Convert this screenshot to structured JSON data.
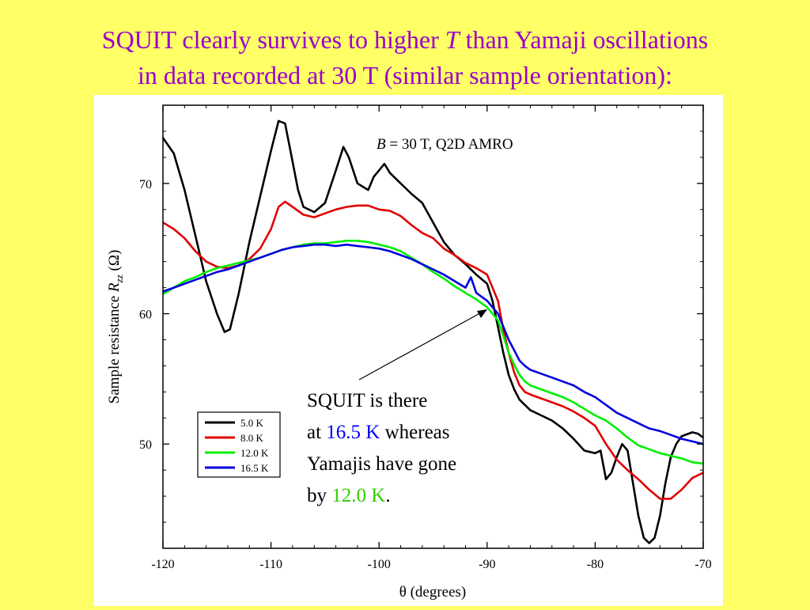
{
  "slide": {
    "title_part1": "SQUIT clearly survives to higher ",
    "title_T": "T",
    "title_part2": " than Yamaji oscillations",
    "title_line2": "in data recorded at 30 T (similar sample orientation):"
  },
  "callout": {
    "line1": "SQUIT is there",
    "at": "at ",
    "temp_blue": "16.5 K",
    "whereas": " whereas",
    "line3": "Yamajis have gone",
    "by": "by ",
    "temp_green": "12.0 K",
    "period": "."
  },
  "colors": {
    "title": "#9900cc",
    "background": "#ffff66",
    "k5": "#000000",
    "k8": "#e00000",
    "k12": "#00ee00",
    "k16": "#0000dd"
  },
  "chart_data": {
    "type": "line",
    "annotation_B": "B",
    "annotation_rest": " = 30 T, Q2D AMRO",
    "xlabel": "θ (degrees)",
    "ylabel_part1": "Sample resistance ",
    "ylabel_R": "R",
    "ylabel_sub": "zz",
    "ylabel_unit": " (Ω)",
    "xlim": [
      -120,
      -70
    ],
    "ylim": [
      42,
      76
    ],
    "xticks": [
      -120,
      -110,
      -100,
      -90,
      -80,
      -70
    ],
    "yticks": [
      50,
      60,
      70
    ],
    "legend_position": "bottom-left",
    "series": [
      {
        "name": "5.0 K",
        "color": "#000000",
        "x": [
          -120,
          -119,
          -118,
          -117,
          -116,
          -115,
          -114.3,
          -113.8,
          -113,
          -112,
          -111,
          -110,
          -109.3,
          -108.7,
          -108.2,
          -107.5,
          -107,
          -106,
          -105,
          -104,
          -103.3,
          -102.8,
          -102,
          -101,
          -100.5,
          -99.5,
          -99,
          -98,
          -97,
          -96,
          -95,
          -94,
          -93,
          -92,
          -91,
          -90,
          -89.5,
          -89,
          -88.5,
          -88,
          -87.5,
          -87,
          -86.5,
          -86,
          -85,
          -84,
          -83,
          -82,
          -81,
          -80,
          -79.5,
          -79,
          -78.5,
          -78,
          -77.5,
          -77,
          -76.5,
          -76,
          -75.5,
          -75,
          -74.5,
          -74,
          -73.5,
          -73,
          -72.5,
          -72,
          -71,
          -70.5,
          -70
        ],
        "y": [
          73.5,
          72.3,
          69.5,
          66.0,
          62.5,
          60.0,
          58.6,
          58.8,
          61.5,
          65.5,
          69.0,
          72.5,
          74.8,
          74.6,
          72.5,
          69.5,
          68.2,
          67.8,
          68.5,
          71.0,
          72.8,
          72.0,
          70.0,
          69.5,
          70.5,
          71.5,
          70.8,
          70.0,
          69.2,
          68.5,
          67.0,
          65.5,
          64.5,
          63.8,
          63.0,
          62.3,
          61.0,
          59.0,
          57.0,
          55.3,
          54.2,
          53.4,
          53.0,
          52.6,
          52.2,
          51.8,
          51.2,
          50.4,
          49.5,
          49.3,
          49.5,
          47.3,
          47.8,
          49.0,
          50.0,
          49.5,
          47.0,
          44.5,
          42.8,
          42.4,
          42.8,
          44.5,
          47.0,
          49.0,
          50.0,
          50.6,
          50.9,
          50.8,
          50.5
        ]
      },
      {
        "name": "8.0 K",
        "color": "#e00000",
        "x": [
          -120,
          -119,
          -118,
          -117,
          -116,
          -115,
          -114,
          -113,
          -112,
          -111,
          -110,
          -109.3,
          -108.7,
          -108,
          -107,
          -106,
          -105,
          -104,
          -103,
          -102,
          -101,
          -100,
          -99,
          -98,
          -97,
          -96,
          -95,
          -94,
          -93,
          -92,
          -91,
          -90,
          -89,
          -88.5,
          -88,
          -87.5,
          -87,
          -86.5,
          -86,
          -85,
          -84,
          -83,
          -82,
          -81,
          -80,
          -79,
          -78,
          -77,
          -76,
          -75,
          -74,
          -73,
          -72,
          -71,
          -70
        ],
        "y": [
          67.0,
          66.5,
          65.8,
          64.8,
          64.0,
          63.6,
          63.5,
          63.7,
          64.2,
          65.0,
          66.5,
          68.2,
          68.6,
          68.2,
          67.6,
          67.4,
          67.7,
          68.0,
          68.2,
          68.3,
          68.3,
          68.0,
          67.9,
          67.5,
          66.8,
          66.2,
          65.8,
          65.0,
          64.5,
          63.9,
          63.5,
          63.0,
          61.0,
          58.8,
          57.0,
          55.5,
          54.5,
          54.0,
          53.8,
          53.5,
          53.2,
          52.9,
          52.5,
          52.0,
          51.4,
          50.0,
          48.8,
          48.0,
          47.3,
          46.5,
          45.8,
          45.8,
          46.5,
          47.4,
          47.8
        ]
      },
      {
        "name": "12.0 K",
        "color": "#00ee00",
        "x": [
          -120,
          -119,
          -118,
          -117,
          -116,
          -115,
          -114,
          -113,
          -112,
          -111,
          -110,
          -109,
          -108,
          -107,
          -106,
          -105,
          -104,
          -103,
          -102,
          -101,
          -100,
          -99,
          -98,
          -97,
          -96,
          -95,
          -94,
          -93,
          -92,
          -91,
          -90,
          -89,
          -88.5,
          -88,
          -87.5,
          -87,
          -86.5,
          -86,
          -85,
          -84,
          -83,
          -82,
          -81,
          -80,
          -79,
          -78,
          -77,
          -76,
          -75,
          -74,
          -73,
          -72,
          -71,
          -70
        ],
        "y": [
          61.5,
          62.0,
          62.5,
          62.8,
          63.2,
          63.5,
          63.7,
          63.9,
          64.1,
          64.3,
          64.6,
          64.9,
          65.1,
          65.3,
          65.4,
          65.4,
          65.5,
          65.6,
          65.6,
          65.5,
          65.3,
          65.1,
          64.8,
          64.3,
          63.8,
          63.2,
          62.7,
          62.1,
          61.6,
          61.1,
          60.5,
          59.5,
          58.3,
          57.0,
          56.1,
          55.3,
          54.8,
          54.5,
          54.2,
          53.9,
          53.6,
          53.2,
          52.7,
          52.2,
          51.8,
          51.2,
          50.5,
          49.9,
          49.6,
          49.3,
          49.1,
          48.9,
          48.6,
          48.5
        ]
      },
      {
        "name": "16.5 K",
        "color": "#0000dd",
        "x": [
          -120,
          -119,
          -118,
          -117,
          -116,
          -115,
          -114,
          -113,
          -112,
          -111,
          -110,
          -109,
          -108,
          -107,
          -106,
          -105,
          -104,
          -103,
          -102,
          -101,
          -100,
          -99,
          -98,
          -97,
          -96,
          -95,
          -94,
          -93,
          -92,
          -91.5,
          -91,
          -90,
          -89,
          -88.5,
          -88,
          -87.5,
          -87,
          -86.5,
          -86,
          -85,
          -84,
          -83,
          -82,
          -81,
          -80,
          -79,
          -78,
          -77,
          -76,
          -75,
          -74,
          -73,
          -72,
          -71,
          -70
        ],
        "y": [
          61.7,
          62.0,
          62.3,
          62.6,
          62.9,
          63.2,
          63.4,
          63.7,
          64.0,
          64.3,
          64.6,
          64.9,
          65.1,
          65.2,
          65.3,
          65.3,
          65.2,
          65.3,
          65.2,
          65.1,
          65.0,
          64.8,
          64.5,
          64.2,
          63.8,
          63.4,
          63.0,
          62.5,
          62.0,
          62.8,
          61.6,
          61.0,
          60.0,
          59.0,
          58.0,
          57.2,
          56.4,
          56.0,
          55.7,
          55.4,
          55.1,
          54.8,
          54.5,
          54.0,
          53.6,
          53.0,
          52.4,
          52.0,
          51.6,
          51.2,
          51.0,
          50.7,
          50.4,
          50.2,
          50.0
        ]
      }
    ]
  }
}
